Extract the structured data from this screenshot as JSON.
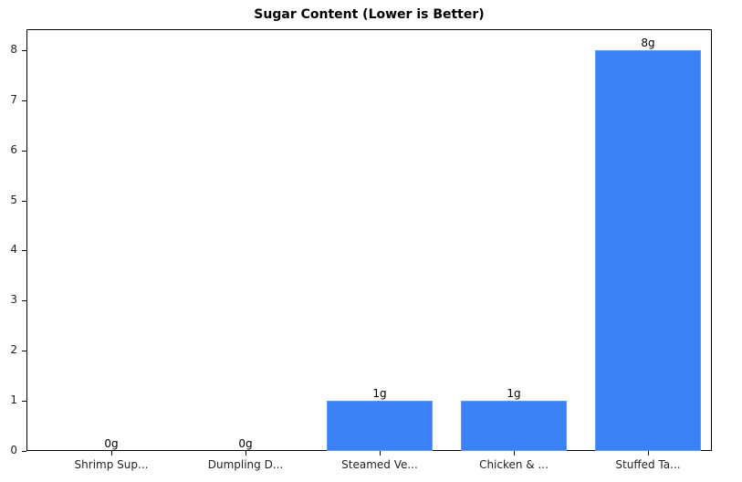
{
  "chart_data": {
    "type": "bar",
    "title": "Sugar Content (Lower is Better)",
    "xlabel": "",
    "ylabel": "",
    "categories": [
      "Shrimp Sup...",
      "Dumpling D...",
      "Steamed Ve...",
      "Chicken & ...",
      "Stuffed Ta..."
    ],
    "values": [
      0,
      0,
      1,
      1,
      8
    ],
    "data_labels": [
      "0g",
      "0g",
      "1g",
      "1g",
      "8g"
    ],
    "ylim": [
      0,
      8.4
    ],
    "yticks": [
      0,
      1,
      2,
      3,
      4,
      5,
      6,
      7,
      8
    ],
    "grid": false,
    "legend": null,
    "bar_color": "#3b82f6"
  }
}
